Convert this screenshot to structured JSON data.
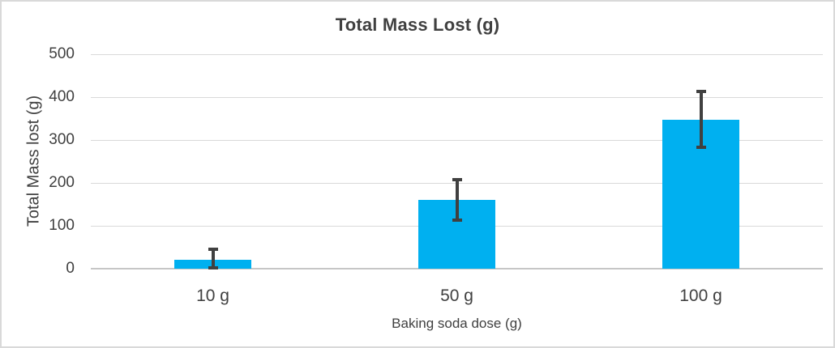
{
  "chart_data": {
    "type": "bar",
    "title": "Total Mass Lost (g)",
    "xlabel": "Baking soda dose (g)",
    "ylabel": "Total Mass lost (g)",
    "categories": [
      "10 g",
      "50 g",
      "100 g"
    ],
    "values": [
      20,
      160,
      348
    ],
    "error_bars": {
      "upper": [
        45,
        207,
        413
      ],
      "lower": [
        2,
        114,
        283
      ]
    },
    "ylim": [
      0,
      500
    ],
    "yticks": [
      0,
      100,
      200,
      300,
      400,
      500
    ],
    "grid": "horizontal",
    "legend": "none",
    "bar_color": "#00b0f0",
    "error_bar_color": "#404040",
    "gridline_color": "#d9d9d9",
    "axis_line_color": "#c6c6c6",
    "text_color": "#404040"
  }
}
